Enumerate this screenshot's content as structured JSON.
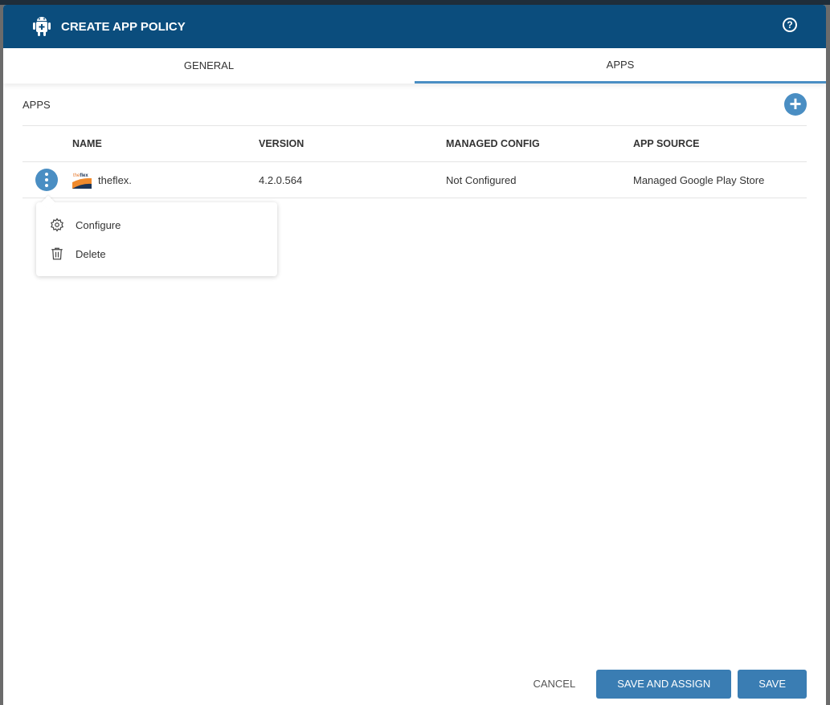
{
  "header": {
    "title": "CREATE APP POLICY"
  },
  "tabs": [
    {
      "label": "GENERAL",
      "active": false
    },
    {
      "label": "APPS",
      "active": true
    }
  ],
  "apps": {
    "section_title": "APPS",
    "columns": [
      "NAME",
      "VERSION",
      "MANAGED CONFIG",
      "APP SOURCE"
    ],
    "rows": [
      {
        "name": "theflex.",
        "version": "4.2.0.564",
        "managed_config": "Not Configured",
        "app_source": "Managed Google Play Store"
      }
    ]
  },
  "context_menu": {
    "items": [
      "Configure",
      "Delete"
    ]
  },
  "footer": {
    "cancel": "CANCEL",
    "save_assign": "SAVE AND ASSIGN",
    "save": "SAVE"
  },
  "colors": {
    "header": "#0b4d7d",
    "accent": "#4a8ec3",
    "button": "#3a7db3"
  }
}
